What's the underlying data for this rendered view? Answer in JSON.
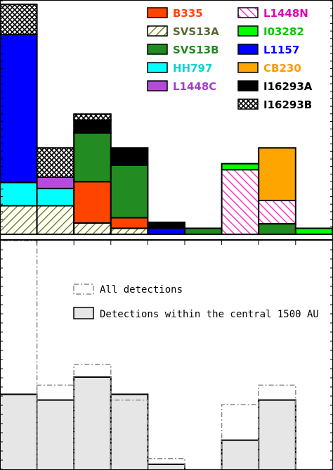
{
  "chart_data": [
    {
      "type": "bar",
      "stacked": true,
      "title": "",
      "xlabel": "",
      "ylabel": "",
      "bin_index": [
        0,
        1,
        2,
        3,
        4,
        5,
        6,
        7,
        8
      ],
      "ylim": [
        0,
        31
      ],
      "legend_position": "top-right",
      "series": [
        {
          "name": "SVS13A",
          "color": "#fffff0",
          "pattern": "hatch-light",
          "values": [
            3.8,
            3.8,
            1.5,
            0.8,
            0,
            0,
            0,
            0,
            0
          ]
        },
        {
          "name": "B335",
          "color": "#ff4400",
          "pattern": "solid",
          "values": [
            0,
            0,
            5.5,
            1.4,
            0,
            0,
            0,
            0,
            0
          ]
        },
        {
          "name": "SVS13B",
          "color": "#228b22",
          "pattern": "solid",
          "values": [
            0,
            0,
            6.5,
            7,
            0,
            0.8,
            0,
            1.4,
            0
          ]
        },
        {
          "name": "HH797",
          "color": "#00ffff",
          "pattern": "solid",
          "values": [
            3.1,
            2.3,
            0,
            0,
            0,
            0,
            0,
            0,
            0
          ]
        },
        {
          "name": "L1448C",
          "color": "#b44bdc",
          "pattern": "solid",
          "values": [
            0,
            1.5,
            0,
            0,
            0,
            0,
            0,
            0,
            0
          ]
        },
        {
          "name": "L1448N",
          "color": "#ff33cc",
          "pattern": "hatch-pink",
          "values": [
            0,
            0,
            0,
            0,
            0,
            0,
            8.6,
            3.1,
            0
          ]
        },
        {
          "name": "I03282",
          "color": "#00ff00",
          "pattern": "solid",
          "values": [
            0,
            0,
            0,
            0,
            0,
            0,
            0.8,
            0,
            0.8
          ]
        },
        {
          "name": "L1157",
          "color": "#0000ff",
          "pattern": "solid",
          "values": [
            19.7,
            0,
            0,
            0,
            0.8,
            0,
            0,
            0,
            0
          ]
        },
        {
          "name": "CB230",
          "color": "#ffa500",
          "pattern": "solid",
          "values": [
            0,
            0,
            0,
            0,
            0,
            0,
            0,
            7,
            0
          ]
        },
        {
          "name": "I16293A",
          "color": "#000000",
          "pattern": "solid",
          "values": [
            0,
            0,
            1.7,
            2.3,
            0.8,
            0,
            0,
            0,
            0
          ]
        },
        {
          "name": "I16293B",
          "color": "#ffffff",
          "pattern": "crosshatch",
          "values": [
            4,
            3.9,
            0.8,
            0,
            0,
            0,
            0,
            0,
            0
          ]
        }
      ]
    },
    {
      "type": "bar",
      "title": "",
      "xlabel": "",
      "ylabel": "",
      "bin_index": [
        0,
        1,
        2,
        3,
        4,
        5,
        6,
        7,
        8
      ],
      "ylim": [
        0,
        20
      ],
      "legend_position": "middle",
      "series": [
        {
          "name": "All detections",
          "style": "dash-dot outline",
          "values": [
            20,
            7.4,
            9.2,
            6.1,
            1,
            0,
            5.7,
            7.4,
            0
          ]
        },
        {
          "name": "Detections within the central 1500 AU",
          "color": "#e6e6e6",
          "style": "filled",
          "values": [
            6.6,
            6.1,
            8.1,
            6.6,
            0.5,
            0,
            2.6,
            6.1,
            0
          ]
        }
      ]
    }
  ]
}
